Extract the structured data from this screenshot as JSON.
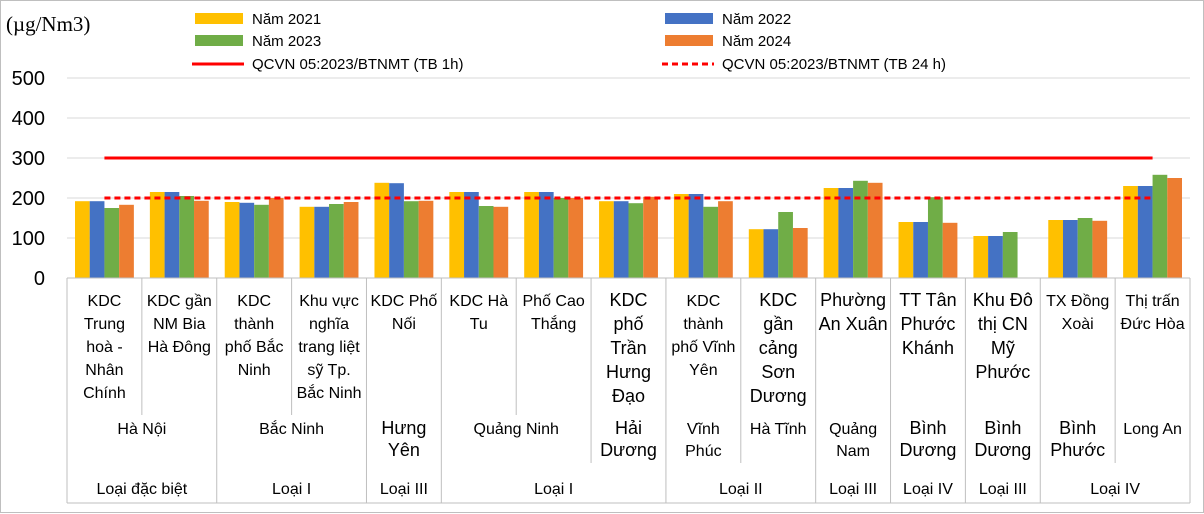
{
  "chart_data": {
    "type": "bar",
    "unit_label": "(µg/Nm3)",
    "ylim": [
      0,
      500
    ],
    "yticks": [
      "0",
      "100",
      "200",
      "300",
      "400",
      "500"
    ],
    "grid": true,
    "legend_position": "top",
    "series": [
      {
        "name": "Năm 2021",
        "color": "#FFC000",
        "values": [
          192,
          215,
          190,
          178,
          238,
          215,
          215,
          192,
          210,
          122,
          225,
          140,
          105,
          145,
          230
        ]
      },
      {
        "name": "Năm 2022",
        "color": "#4472C4",
        "values": [
          192,
          215,
          188,
          178,
          237,
          215,
          215,
          192,
          210,
          122,
          225,
          140,
          105,
          145,
          230
        ]
      },
      {
        "name": "Năm 2023",
        "color": "#70AD47",
        "values": [
          175,
          205,
          183,
          185,
          192,
          180,
          200,
          187,
          178,
          165,
          243,
          202,
          115,
          150,
          258
        ]
      },
      {
        "name": "Năm 2024",
        "color": "#ED7D31",
        "values": [
          183,
          193,
          200,
          190,
          193,
          178,
          200,
          203,
          192,
          125,
          238,
          138,
          null,
          143,
          250
        ]
      }
    ],
    "reference_lines": [
      {
        "name": "QCVN 05:2023/BTNMT (TB 1h)",
        "value": 300,
        "color": "#FF0000",
        "style": "solid"
      },
      {
        "name": "QCVN 05:2023/BTNMT (TB 24 h)",
        "value": 200,
        "color": "#FF0000",
        "style": "dashed"
      }
    ],
    "categories": [
      {
        "label": [
          "KDC",
          "Trung",
          "hoà -",
          "Nhân",
          "Chính"
        ],
        "large": false
      },
      {
        "label": [
          "KDC gần",
          "NM Bia",
          "Hà Đông"
        ],
        "large": false
      },
      {
        "label": [
          "KDC",
          "thành",
          "phố Bắc",
          "Ninh"
        ],
        "large": false
      },
      {
        "label": [
          "Khu vực",
          "nghĩa",
          "trang liệt",
          "sỹ Tp.",
          "Bắc Ninh"
        ],
        "large": false
      },
      {
        "label": [
          "KDC Phố",
          "Nối"
        ],
        "large": false
      },
      {
        "label": [
          "KDC  Hà",
          "Tu"
        ],
        "large": false
      },
      {
        "label": [
          "Phố Cao",
          "Thắng"
        ],
        "large": false
      },
      {
        "label": [
          "KDC",
          "phố",
          "Trần",
          "Hưng",
          "Đạo"
        ],
        "large": true
      },
      {
        "label": [
          "KDC",
          "thành",
          "phố Vĩnh",
          "Yên"
        ],
        "large": false
      },
      {
        "label": [
          "KDC",
          "gần",
          "cảng",
          "Sơn",
          "Dương"
        ],
        "large": true
      },
      {
        "label": [
          "Phường",
          "An Xuân"
        ],
        "large": true
      },
      {
        "label": [
          "TT Tân",
          "Phước",
          "Khánh"
        ],
        "large": true
      },
      {
        "label": [
          "Khu Đô",
          "thị CN",
          "Mỹ",
          "Phước"
        ],
        "large": true
      },
      {
        "label": [
          "TX Đồng",
          "Xoài"
        ],
        "large": false
      },
      {
        "label": [
          "Thị trấn",
          "Đức Hòa"
        ],
        "large": false
      }
    ],
    "provinces": [
      {
        "label": [
          "Hà Nội"
        ],
        "span": [
          0,
          1
        ],
        "large": false
      },
      {
        "label": [
          "Bắc Ninh"
        ],
        "span": [
          2,
          3
        ],
        "large": false
      },
      {
        "label": [
          "Hưng",
          "Yên"
        ],
        "span": [
          4,
          4
        ],
        "large": true
      },
      {
        "label": [
          "Quảng Ninh"
        ],
        "span": [
          5,
          6
        ],
        "large": false
      },
      {
        "label": [
          "Hải",
          "Dương"
        ],
        "span": [
          7,
          7
        ],
        "large": true
      },
      {
        "label": [
          "Vĩnh",
          "Phúc"
        ],
        "span": [
          8,
          8
        ],
        "large": false
      },
      {
        "label": [
          "Hà Tĩnh"
        ],
        "span": [
          9,
          9
        ],
        "large": false
      },
      {
        "label": [
          "Quảng",
          "Nam"
        ],
        "span": [
          10,
          10
        ],
        "large": false
      },
      {
        "label": [
          "Bình",
          "Dương"
        ],
        "span": [
          11,
          11
        ],
        "large": true
      },
      {
        "label": [
          "Bình",
          "Dương"
        ],
        "span": [
          12,
          12
        ],
        "large": true
      },
      {
        "label": [
          "Bình",
          "Phước"
        ],
        "span": [
          13,
          13
        ],
        "large": true
      },
      {
        "label": [
          "Long An"
        ],
        "span": [
          14,
          14
        ],
        "large": false
      }
    ],
    "classes": [
      {
        "label": "Loại đặc biệt",
        "span": [
          0,
          1
        ]
      },
      {
        "label": "Loại I",
        "span": [
          2,
          3
        ]
      },
      {
        "label": "Loại III",
        "span": [
          4,
          4
        ]
      },
      {
        "label": "Loại I",
        "span": [
          5,
          7
        ]
      },
      {
        "label": "Loại II",
        "span": [
          8,
          9
        ]
      },
      {
        "label": "Loại III",
        "span": [
          10,
          10
        ]
      },
      {
        "label": "Loại IV",
        "span": [
          11,
          11
        ]
      },
      {
        "label": "Loại III",
        "span": [
          12,
          12
        ]
      },
      {
        "label": "Loại IV",
        "span": [
          13,
          14
        ]
      }
    ]
  }
}
